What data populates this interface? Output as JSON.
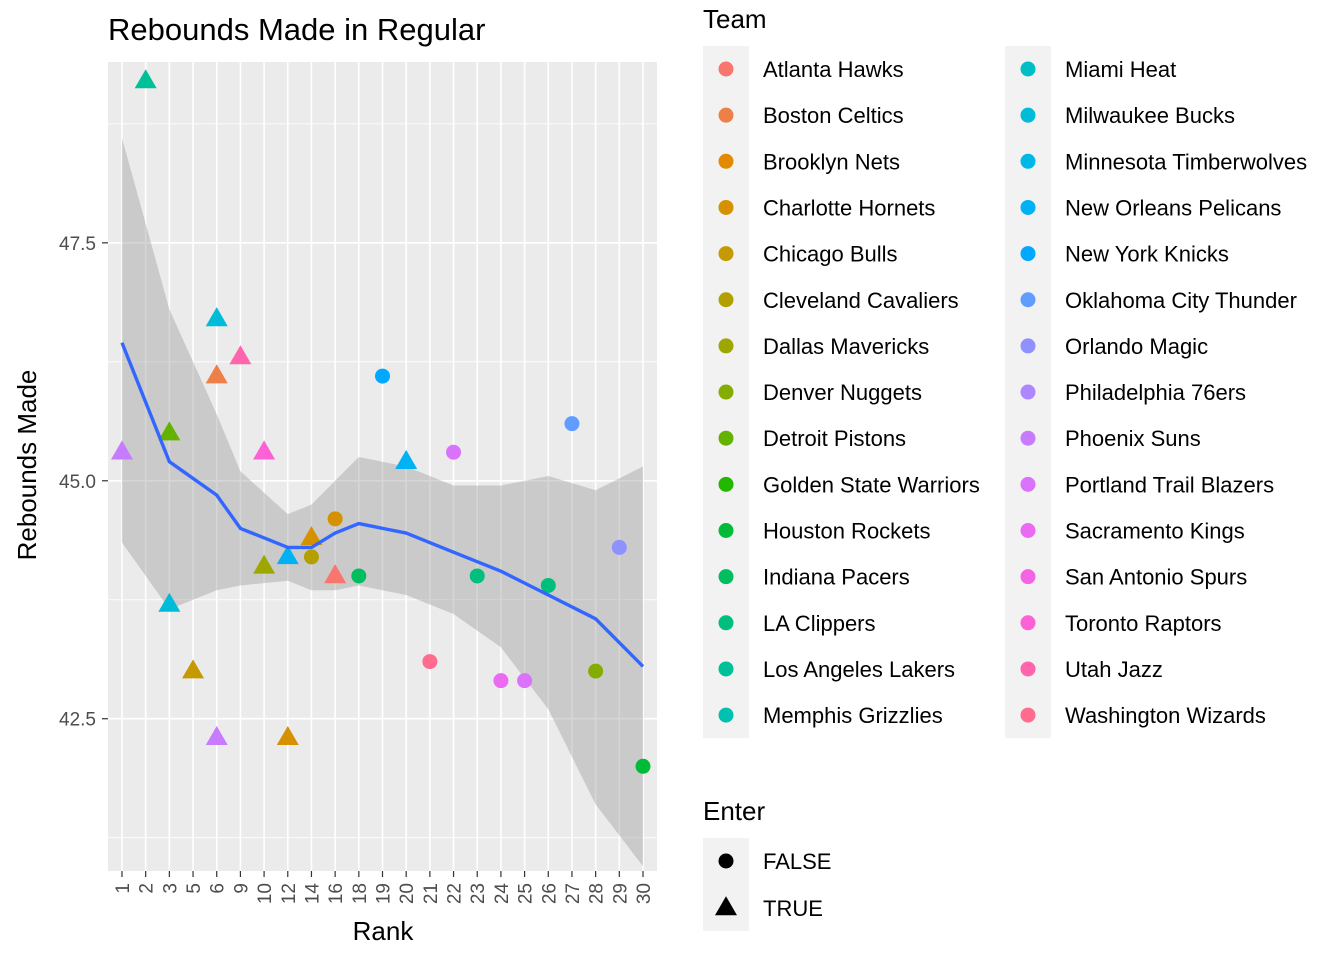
{
  "chart_data": {
    "type": "scatter",
    "title": "Rebounds Made in Regular",
    "xlabel": "Rank",
    "ylabel": "Rebounds Made",
    "x_ticks": [
      "1",
      "2",
      "3",
      "5",
      "6",
      "9",
      "10",
      "12",
      "14",
      "16",
      "18",
      "19",
      "20",
      "21",
      "22",
      "23",
      "24",
      "25",
      "26",
      "27",
      "28",
      "29",
      "30"
    ],
    "y_ticks": [
      42.5,
      45.0,
      47.5
    ],
    "y_tick_labels": [
      "42.5",
      "45.0",
      "47.5"
    ],
    "ylim": [
      40.9,
      49.4
    ],
    "grid": true,
    "legend_placement": "right",
    "team_legend": {
      "title": "Team",
      "items": [
        {
          "label": "Atlanta Hawks",
          "color": "#F8766D"
        },
        {
          "label": "Boston Celtics",
          "color": "#EF7F49"
        },
        {
          "label": "Brooklyn Nets",
          "color": "#E38900"
        },
        {
          "label": "Charlotte Hornets",
          "color": "#D59100"
        },
        {
          "label": "Chicago Bulls",
          "color": "#C59900"
        },
        {
          "label": "Cleveland Cavaliers",
          "color": "#B3A000"
        },
        {
          "label": "Dallas Mavericks",
          "color": "#9EA700"
        },
        {
          "label": "Denver Nuggets",
          "color": "#85AD00"
        },
        {
          "label": "Detroit Pistons",
          "color": "#64B200"
        },
        {
          "label": "Golden State Warriors",
          "color": "#24B700"
        },
        {
          "label": "Houston Rockets",
          "color": "#00BA38"
        },
        {
          "label": "Indiana Pacers",
          "color": "#00BD5F"
        },
        {
          "label": "LA Clippers",
          "color": "#00BF7D"
        },
        {
          "label": "Los Angeles Lakers",
          "color": "#00C098"
        },
        {
          "label": "Memphis Grizzlies",
          "color": "#00C0AF"
        },
        {
          "label": "Miami Heat",
          "color": "#00BFC4"
        },
        {
          "label": "Milwaukee Bucks",
          "color": "#00BCD8"
        },
        {
          "label": "Minnesota Timberwolves",
          "color": "#00B8E7"
        },
        {
          "label": "New Orleans Pelicans",
          "color": "#00B2F3"
        },
        {
          "label": "New York Knicks",
          "color": "#00A9FF"
        },
        {
          "label": "Oklahoma City Thunder",
          "color": "#619CFF"
        },
        {
          "label": "Orlando Magic",
          "color": "#8F91FF"
        },
        {
          "label": "Philadelphia 76ers",
          "color": "#AE87FF"
        },
        {
          "label": "Phoenix Suns",
          "color": "#C77CFF"
        },
        {
          "label": "Portland Trail Blazers",
          "color": "#DB72FB"
        },
        {
          "label": "Sacramento Kings",
          "color": "#EA6AF1"
        },
        {
          "label": "San Antonio Spurs",
          "color": "#F564E3"
        },
        {
          "label": "Toronto Raptors",
          "color": "#FC61D5"
        },
        {
          "label": "Utah Jazz",
          "color": "#FF65AC"
        },
        {
          "label": "Washington Wizards",
          "color": "#FF6C90"
        }
      ]
    },
    "shape_legend": {
      "title": "Enter",
      "items": [
        {
          "label": "FALSE",
          "shape": "circle"
        },
        {
          "label": "TRUE",
          "shape": "triangle"
        }
      ]
    },
    "points": [
      {
        "x": "1",
        "y": 45.3,
        "shape": "triangle",
        "color": "#C77CFF"
      },
      {
        "x": "2",
        "y": 49.2,
        "shape": "triangle",
        "color": "#00C098"
      },
      {
        "x": "3",
        "y": 45.5,
        "shape": "triangle",
        "color": "#64B200"
      },
      {
        "x": "3",
        "y": 43.7,
        "shape": "triangle",
        "color": "#00BCD8"
      },
      {
        "x": "5",
        "y": 43.0,
        "shape": "triangle",
        "color": "#C59900"
      },
      {
        "x": "6",
        "y": 46.7,
        "shape": "triangle",
        "color": "#00BCD8"
      },
      {
        "x": "6",
        "y": 46.1,
        "shape": "triangle",
        "color": "#EF7F49"
      },
      {
        "x": "6",
        "y": 42.3,
        "shape": "triangle",
        "color": "#C77CFF"
      },
      {
        "x": "9",
        "y": 46.3,
        "shape": "triangle",
        "color": "#FF65AC"
      },
      {
        "x": "10",
        "y": 45.3,
        "shape": "triangle",
        "color": "#FC61D5"
      },
      {
        "x": "10",
        "y": 44.1,
        "shape": "triangle",
        "color": "#9EA700"
      },
      {
        "x": "12",
        "y": 44.2,
        "shape": "triangle",
        "color": "#00B2F3"
      },
      {
        "x": "12",
        "y": 42.3,
        "shape": "triangle",
        "color": "#D59100"
      },
      {
        "x": "14",
        "y": 44.4,
        "shape": "triangle",
        "color": "#D59100"
      },
      {
        "x": "14",
        "y": 44.2,
        "shape": "circle",
        "color": "#B3A000"
      },
      {
        "x": "16",
        "y": 44.6,
        "shape": "circle",
        "color": "#D59100"
      },
      {
        "x": "16",
        "y": 44.0,
        "shape": "triangle",
        "color": "#F8766D"
      },
      {
        "x": "18",
        "y": 44.0,
        "shape": "circle",
        "color": "#00BD5F"
      },
      {
        "x": "19",
        "y": 46.1,
        "shape": "circle",
        "color": "#00A9FF"
      },
      {
        "x": "20",
        "y": 45.2,
        "shape": "triangle",
        "color": "#00B2F3"
      },
      {
        "x": "21",
        "y": 43.1,
        "shape": "circle",
        "color": "#FF6C90"
      },
      {
        "x": "22",
        "y": 45.3,
        "shape": "circle",
        "color": "#DB72FB"
      },
      {
        "x": "23",
        "y": 44.0,
        "shape": "circle",
        "color": "#00BF7D"
      },
      {
        "x": "24",
        "y": 42.9,
        "shape": "circle",
        "color": "#EA6AF1"
      },
      {
        "x": "25",
        "y": 42.9,
        "shape": "circle",
        "color": "#DB72FB"
      },
      {
        "x": "26",
        "y": 43.9,
        "shape": "circle",
        "color": "#00BF7D"
      },
      {
        "x": "27",
        "y": 45.6,
        "shape": "circle",
        "color": "#619CFF"
      },
      {
        "x": "28",
        "y": 43.0,
        "shape": "circle",
        "color": "#85AD00"
      },
      {
        "x": "29",
        "y": 44.3,
        "shape": "circle",
        "color": "#8F91FF"
      },
      {
        "x": "30",
        "y": 42.0,
        "shape": "circle",
        "color": "#00BA38"
      }
    ],
    "smooth": {
      "color": "#3366FF",
      "x": [
        "1",
        "3",
        "6",
        "9",
        "12",
        "14",
        "16",
        "18",
        "20",
        "22",
        "24",
        "26",
        "28",
        "30"
      ],
      "y": [
        46.45,
        45.2,
        44.85,
        44.5,
        44.3,
        44.3,
        44.45,
        44.55,
        44.45,
        44.25,
        44.05,
        43.8,
        43.55,
        43.05
      ],
      "upper": [
        48.6,
        46.8,
        45.7,
        45.1,
        44.65,
        44.75,
        45.0,
        45.25,
        45.15,
        44.95,
        44.95,
        45.05,
        44.9,
        45.15
      ],
      "lower": [
        44.35,
        43.65,
        43.85,
        43.9,
        43.95,
        43.85,
        43.85,
        43.9,
        43.8,
        43.6,
        43.25,
        42.6,
        41.6,
        40.95
      ]
    }
  }
}
